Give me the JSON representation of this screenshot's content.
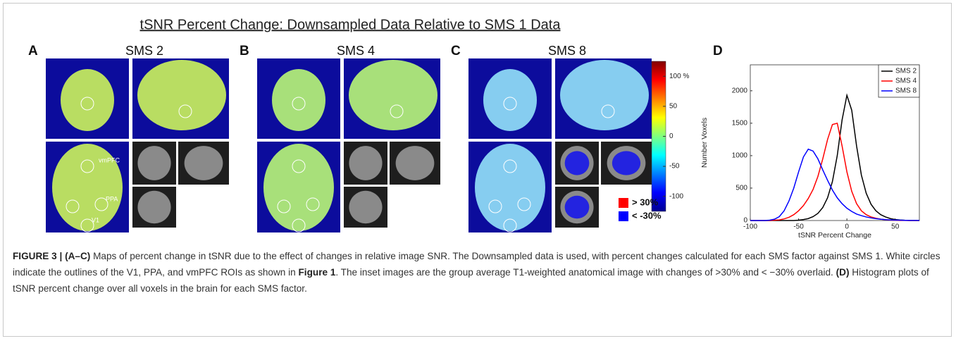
{
  "figure": {
    "title": "tSNR Percent Change: Downsampled Data Relative to  SMS 1 Data",
    "panels": [
      {
        "letter": "A",
        "label": "SMS 2"
      },
      {
        "letter": "B",
        "label": "SMS 4"
      },
      {
        "letter": "C",
        "label": "SMS 8"
      }
    ],
    "roi_labels": [
      "vmPFC",
      "PPA",
      "V1"
    ],
    "colorbar": {
      "lim": [
        -125,
        125
      ],
      "ticks": [
        {
          "value": 100,
          "label": "100 %"
        },
        50,
        0,
        -50,
        -100
      ]
    },
    "legend": [
      {
        "label": "> 30%",
        "color": "#ff0000"
      },
      {
        "label": "< -30%",
        "color": "#0000ff"
      }
    ]
  },
  "chart_data": {
    "type": "line",
    "panel": "D",
    "xlabel": "tSNR Percent Change",
    "ylabel": "Number Voxels",
    "x": [
      -100,
      -95,
      -90,
      -85,
      -80,
      -75,
      -70,
      -65,
      -60,
      -55,
      -50,
      -45,
      -40,
      -35,
      -30,
      -25,
      -20,
      -15,
      -10,
      -5,
      0,
      5,
      10,
      15,
      20,
      25,
      30,
      35,
      40,
      45,
      50,
      55,
      60,
      65,
      70,
      75
    ],
    "series": [
      {
        "name": "SMS 2",
        "color": "#000000",
        "values": [
          0,
          0,
          0,
          0,
          0,
          0,
          0,
          0,
          0,
          0,
          5,
          15,
          30,
          60,
          110,
          200,
          350,
          600,
          1000,
          1550,
          1930,
          1700,
          1150,
          700,
          420,
          250,
          150,
          90,
          55,
          30,
          15,
          8,
          4,
          2,
          1,
          0
        ]
      },
      {
        "name": "SMS 4",
        "color": "#ff0000",
        "values": [
          0,
          0,
          0,
          0,
          0,
          5,
          10,
          25,
          50,
          90,
          150,
          230,
          340,
          480,
          680,
          950,
          1250,
          1480,
          1500,
          1150,
          750,
          450,
          260,
          150,
          90,
          55,
          35,
          20,
          12,
          7,
          4,
          2,
          1,
          0,
          0,
          0
        ]
      },
      {
        "name": "SMS 8",
        "color": "#0000ff",
        "values": [
          0,
          0,
          0,
          0,
          5,
          20,
          60,
          150,
          300,
          500,
          750,
          980,
          1100,
          1070,
          950,
          780,
          620,
          470,
          350,
          260,
          190,
          140,
          100,
          75,
          55,
          40,
          28,
          20,
          14,
          10,
          7,
          5,
          3,
          2,
          1,
          1
        ]
      }
    ],
    "xlim": [
      -100,
      75
    ],
    "xticks": [
      -100,
      -50,
      0,
      50
    ],
    "ylim": [
      0,
      2400
    ],
    "yticks": [
      0,
      500,
      1000,
      1500,
      2000
    ],
    "legend_position": "upper right"
  },
  "caption": [
    {
      "text": "FIGURE 3 | ",
      "bold": true
    },
    {
      "text": "(A–C)",
      "bold": true
    },
    {
      "text": " Maps of percent change in tSNR due to the effect of changes in relative image SNR. The Downsampled data is used, with percent changes calculated for each SMS factor against SMS 1. White circles indicate the outlines of the V1, PPA, and vmPFC ROIs as shown in ",
      "bold": false
    },
    {
      "text": "Figure 1",
      "bold": true
    },
    {
      "text": ". The inset images are the group average T1-weighted anatomical image with changes of >30% and < −30% overlaid. ",
      "bold": false
    },
    {
      "text": "(D)",
      "bold": true
    },
    {
      "text": " Histogram plots of tSNR percent change over all voxels in the brain for each SMS factor.",
      "bold": false
    }
  ]
}
